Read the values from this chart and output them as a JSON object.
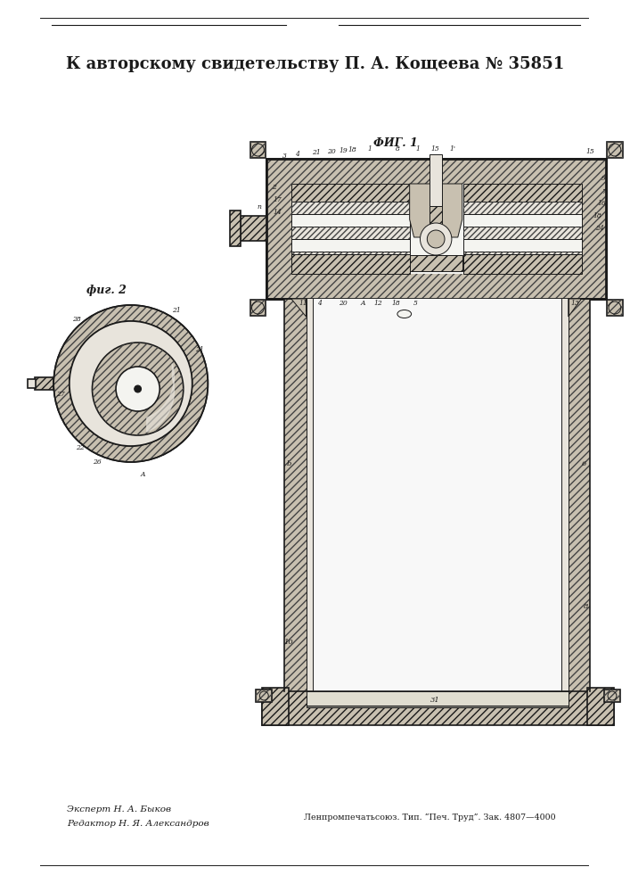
{
  "title": "К авторскому свидетельству П. А. Кощеева № 35851",
  "fig1_label": "ФИГ. 1",
  "fig2_label": "фиг. 2",
  "expert_text": "Эксперт Н. А. Быков",
  "editor_text": "Редактор Н. Я. Александров",
  "publisher_text": "Ленпромпечатьсоюз. Тип. “Печ. Труд”. Зак. 4807—4000",
  "bg_color": "#ffffff",
  "line_color": "#1a1a1a",
  "paper_color": "#f8f8f4",
  "hatch_dark": "#444444",
  "fill_hatch": "#c8c0b0",
  "fill_light": "#e8e4dc",
  "fill_white": "#f4f4f0"
}
